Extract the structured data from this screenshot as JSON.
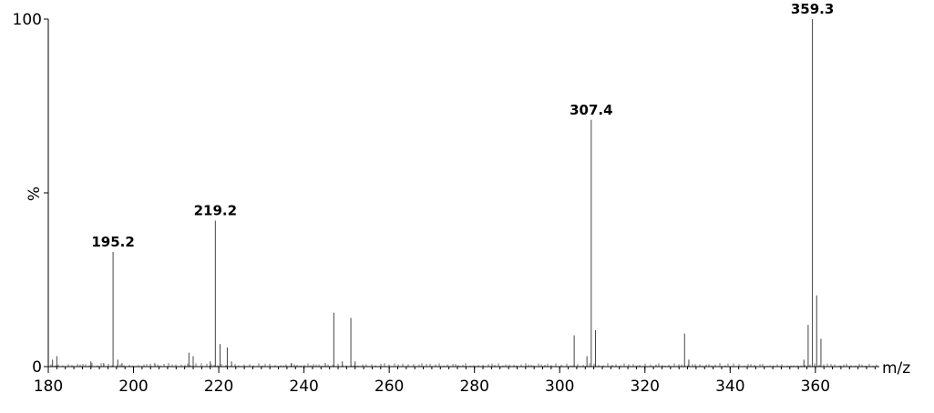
{
  "chart_data": {
    "type": "bar",
    "title": "",
    "xlabel": "m/z",
    "ylabel": "%",
    "xlim": [
      180,
      375
    ],
    "ylim": [
      0,
      100
    ],
    "x_ticks": [
      180,
      200,
      220,
      240,
      260,
      280,
      300,
      320,
      340,
      360
    ],
    "y_tick_labels": [
      {
        "value": 0,
        "label": "0"
      },
      {
        "value": 100,
        "label": "100"
      }
    ],
    "grid": false,
    "legend": "none",
    "peaks": [
      {
        "x": 181,
        "y": 2
      },
      {
        "x": 182,
        "y": 3
      },
      {
        "x": 190,
        "y": 1.5
      },
      {
        "x": 193,
        "y": 1
      },
      {
        "x": 195.2,
        "y": 33
      },
      {
        "x": 196.3,
        "y": 2
      },
      {
        "x": 197.3,
        "y": 1
      },
      {
        "x": 205,
        "y": 1
      },
      {
        "x": 213,
        "y": 4
      },
      {
        "x": 214,
        "y": 3
      },
      {
        "x": 218,
        "y": 1.5
      },
      {
        "x": 219.2,
        "y": 42
      },
      {
        "x": 220.3,
        "y": 6.5
      },
      {
        "x": 222,
        "y": 5.5
      },
      {
        "x": 223,
        "y": 1.5
      },
      {
        "x": 237,
        "y": 1
      },
      {
        "x": 245,
        "y": 1
      },
      {
        "x": 247,
        "y": 15.5
      },
      {
        "x": 249,
        "y": 1.5
      },
      {
        "x": 251,
        "y": 14
      },
      {
        "x": 252,
        "y": 1.5
      },
      {
        "x": 303.4,
        "y": 9
      },
      {
        "x": 306.4,
        "y": 3
      },
      {
        "x": 307.4,
        "y": 71
      },
      {
        "x": 308.4,
        "y": 10.5
      },
      {
        "x": 329.3,
        "y": 9.5
      },
      {
        "x": 330.3,
        "y": 2
      },
      {
        "x": 357.3,
        "y": 2
      },
      {
        "x": 358.3,
        "y": 12
      },
      {
        "x": 359.3,
        "y": 100
      },
      {
        "x": 360.3,
        "y": 20.5
      },
      {
        "x": 361.3,
        "y": 8
      }
    ],
    "annotations": [
      {
        "x": 195.2,
        "y": 33,
        "text": "195.2"
      },
      {
        "x": 219.2,
        "y": 42,
        "text": "219.2"
      },
      {
        "x": 307.4,
        "y": 71,
        "text": "307.4"
      },
      {
        "x": 359.3,
        "y": 100,
        "text": "359.3"
      }
    ]
  }
}
